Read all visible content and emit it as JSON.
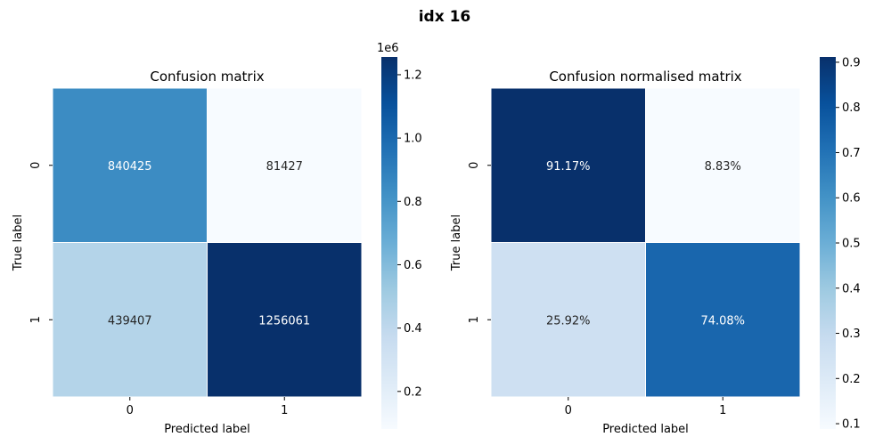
{
  "figure": {
    "suptitle": "idx 16"
  },
  "chart_data": [
    {
      "type": "heatmap",
      "title": "Confusion matrix",
      "xlabel": "Predicted label",
      "ylabel": "True label",
      "x_categories": [
        "0",
        "1"
      ],
      "y_categories": [
        "0",
        "1"
      ],
      "values": [
        [
          840425,
          81427
        ],
        [
          439407,
          1256061
        ]
      ],
      "annotations": [
        [
          "840425",
          "81427"
        ],
        [
          "439407",
          "1256061"
        ]
      ],
      "colormap": "Blues",
      "colorbar": {
        "range": [
          81427,
          1256061
        ],
        "ticks": [
          0.2,
          0.4,
          0.6,
          0.8,
          1.0,
          1.2
        ],
        "tick_labels": [
          "0.2",
          "0.4",
          "0.6",
          "0.8",
          "1.0",
          "1.2"
        ],
        "scale": 1000000,
        "offset_label": "1e6"
      }
    },
    {
      "type": "heatmap",
      "title": "Confusion normalised matrix",
      "xlabel": "Predicted label",
      "ylabel": "True label",
      "x_categories": [
        "0",
        "1"
      ],
      "y_categories": [
        "0",
        "1"
      ],
      "values": [
        [
          0.9117,
          0.0883
        ],
        [
          0.2592,
          0.7408
        ]
      ],
      "annotations": [
        [
          "91.17%",
          "8.83%"
        ],
        [
          "25.92%",
          "74.08%"
        ]
      ],
      "colormap": "Blues",
      "colorbar": {
        "range": [
          0.0883,
          0.9117
        ],
        "ticks": [
          0.1,
          0.2,
          0.3,
          0.4,
          0.5,
          0.6,
          0.7,
          0.8,
          0.9
        ],
        "tick_labels": [
          "0.1",
          "0.2",
          "0.3",
          "0.4",
          "0.5",
          "0.6",
          "0.7",
          "0.8",
          "0.9"
        ],
        "scale": 1,
        "offset_label": ""
      }
    }
  ]
}
